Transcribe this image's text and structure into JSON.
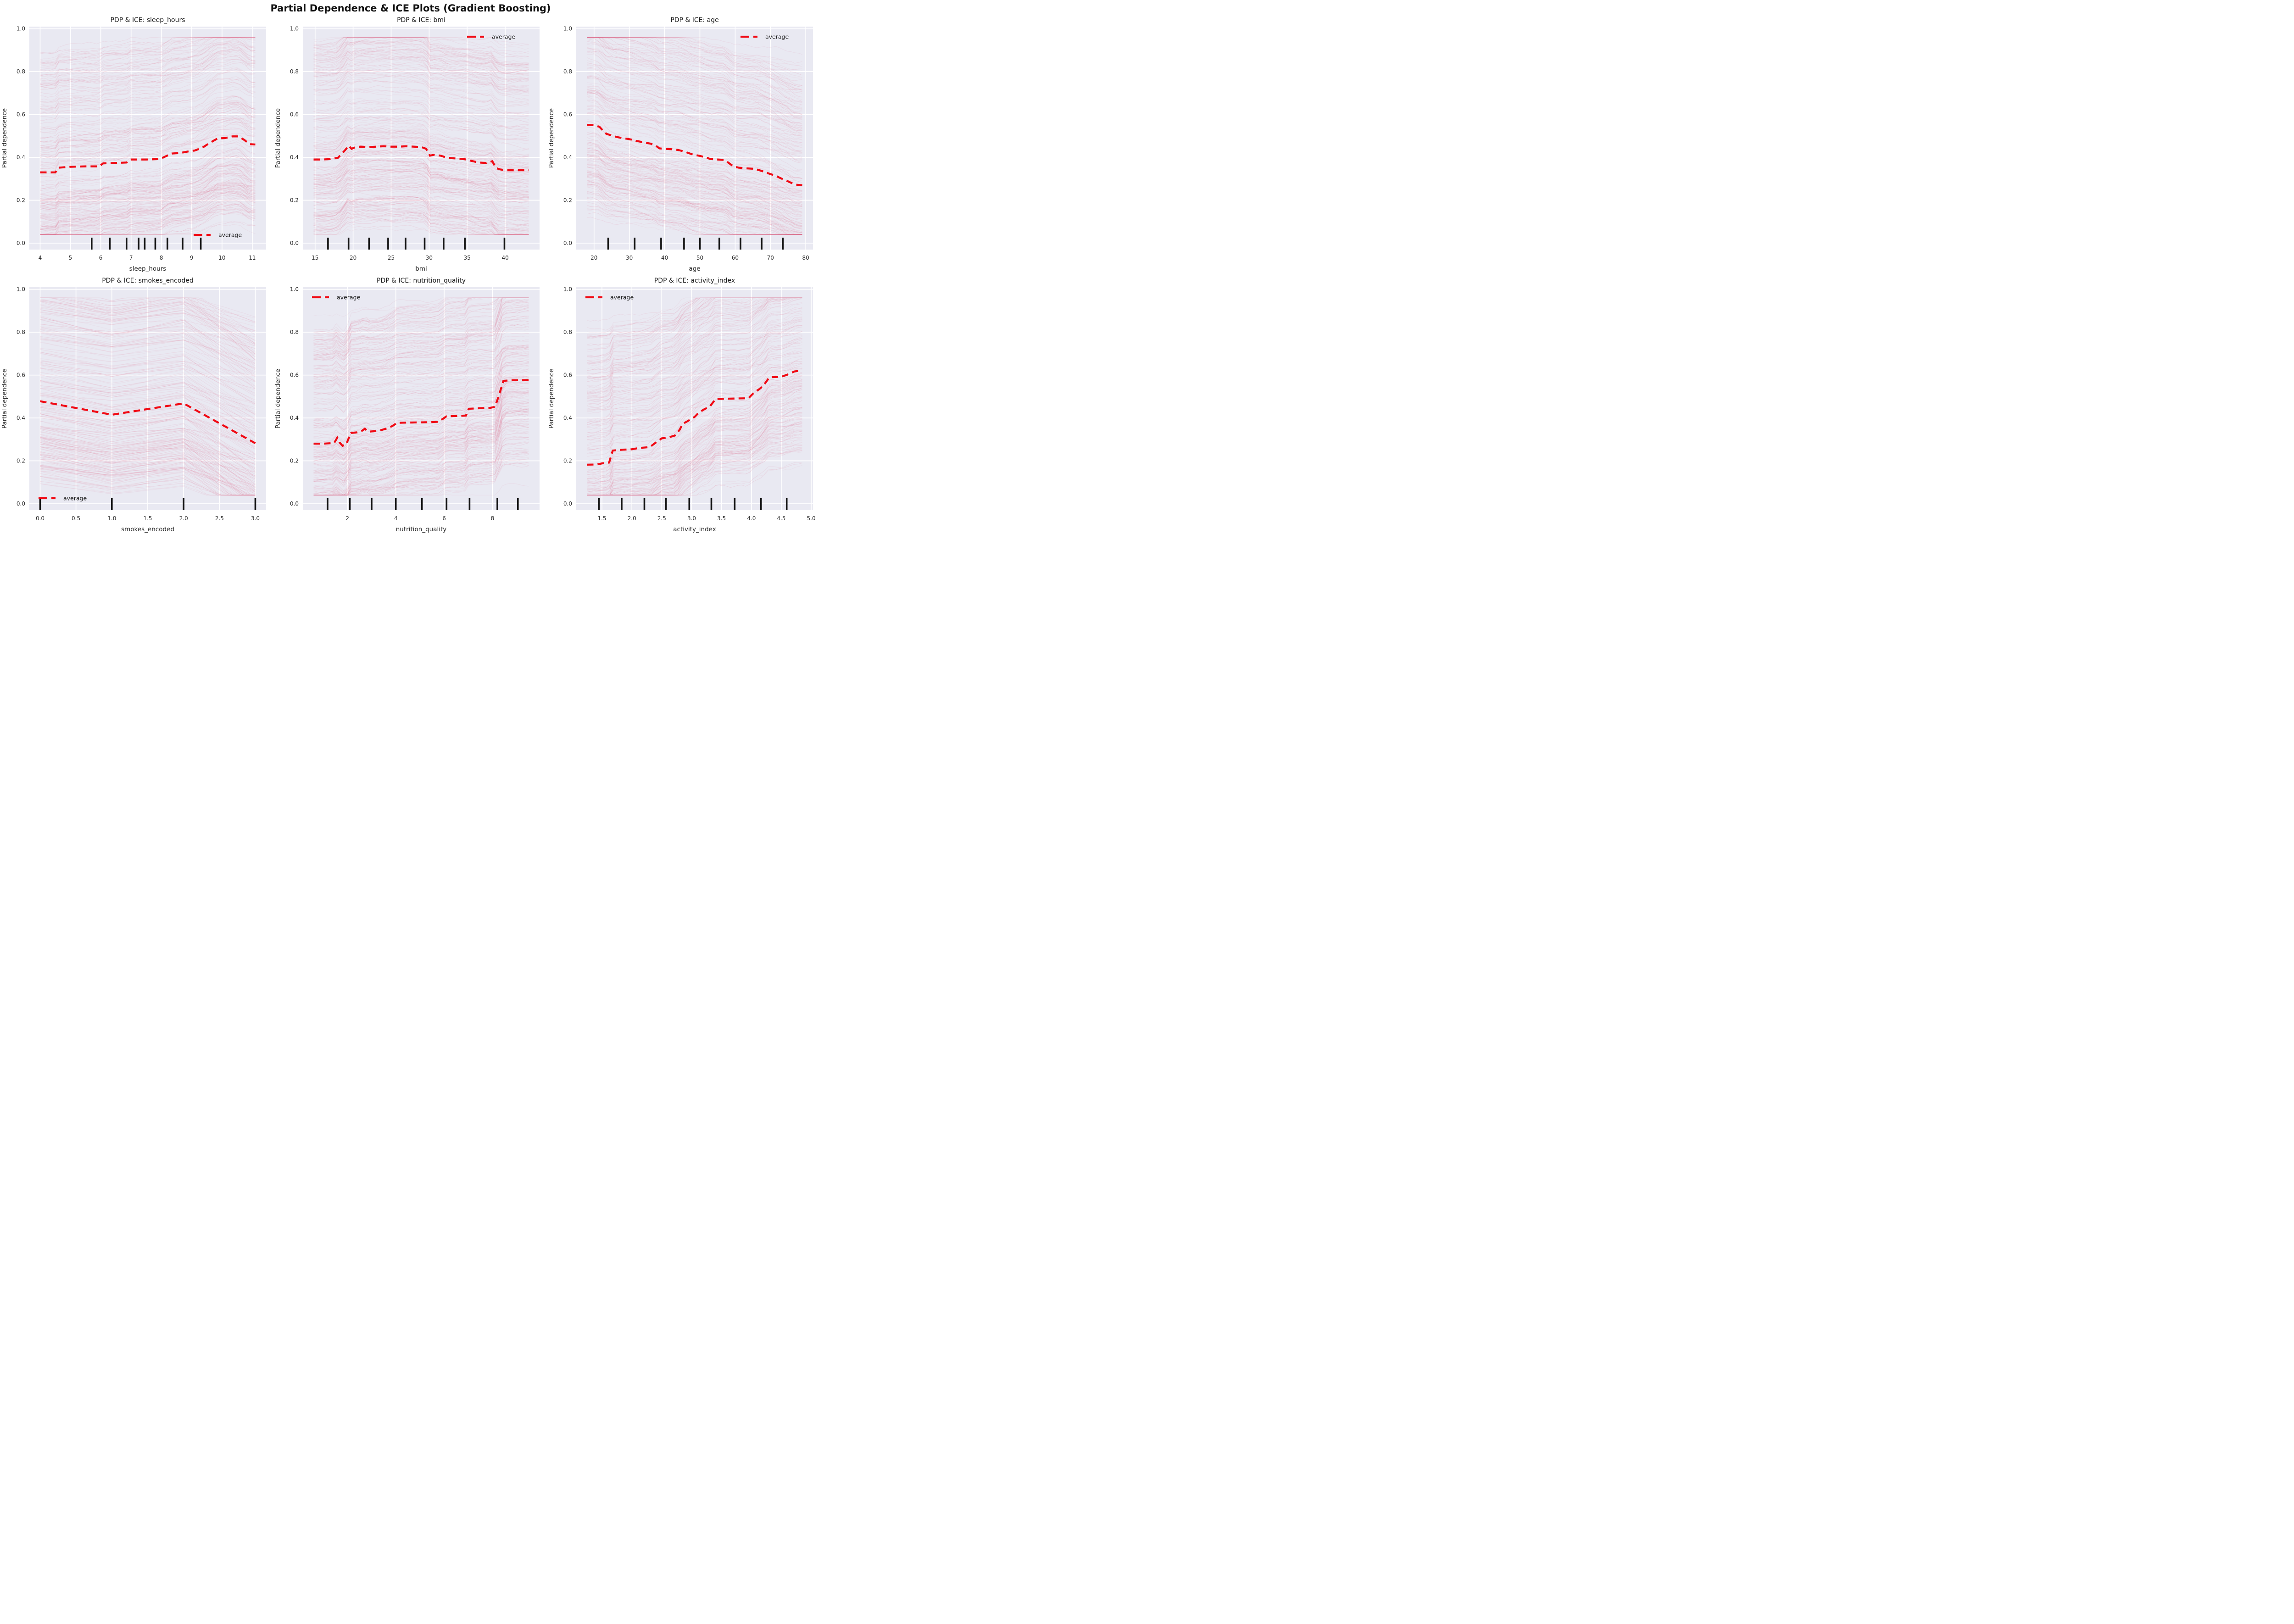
{
  "page": {
    "suptitle": "Partial Dependence & ICE Plots (Gradient Boosting)"
  },
  "style": {
    "background": "#ffffff",
    "axes_bg": "#e9e9f2",
    "grid": "#ffffff",
    "ice": "#e06080",
    "average": "#f00a14",
    "rug": "#141414",
    "text": "#2b2b2b",
    "title": "#1a1a1a"
  },
  "chart_data": [
    {
      "type": "line",
      "feature": "sleep_hours",
      "title": "PDP & ICE: sleep_hours",
      "xlabel": "sleep_hours",
      "ylabel": "Partial dependence",
      "legend": {
        "label": "average",
        "position": "lower right"
      },
      "x_axis_range": [
        3.645,
        11.455
      ],
      "y_axis_range": [
        -0.03,
        1.01
      ],
      "xtick_values": [
        4,
        5,
        6,
        7,
        8,
        9,
        10,
        11
      ],
      "xtick_labels": [
        "4",
        "5",
        "6",
        "7",
        "8",
        "9",
        "10",
        "11"
      ],
      "ytick_values": [
        0,
        0.2,
        0.4,
        0.6,
        0.8,
        1.0
      ],
      "ytick_labels": [
        "0.0",
        "0.2",
        "0.4",
        "0.6",
        "0.8",
        "1.0"
      ],
      "rug_deciles": [
        5.7,
        6.3,
        6.85,
        7.25,
        7.45,
        7.8,
        8.2,
        8.7,
        9.3
      ],
      "series": [
        {
          "name": "average",
          "x": [
            4.0,
            4.5,
            4.62,
            5.0,
            5.5,
            5.95,
            6.08,
            6.5,
            6.85,
            7.0,
            7.5,
            7.95,
            8.1,
            8.35,
            8.6,
            8.9,
            9.1,
            9.35,
            9.6,
            9.85,
            10.1,
            10.35,
            10.55,
            10.75,
            10.9,
            11.1
          ],
          "y": [
            0.33,
            0.33,
            0.352,
            0.356,
            0.358,
            0.358,
            0.372,
            0.374,
            0.376,
            0.39,
            0.39,
            0.392,
            0.402,
            0.418,
            0.42,
            0.428,
            0.432,
            0.445,
            0.468,
            0.488,
            0.49,
            0.498,
            0.498,
            0.48,
            0.462,
            0.46
          ]
        }
      ],
      "ice": {
        "count": 210,
        "seed": 1,
        "noise": 0.012,
        "y_clip": [
          0.04,
          0.96
        ]
      }
    },
    {
      "type": "line",
      "feature": "bmi",
      "title": "PDP & ICE: bmi",
      "xlabel": "bmi",
      "ylabel": "Partial dependence",
      "legend": {
        "label": "average",
        "position": "upper right"
      },
      "x_axis_range": [
        13.385,
        44.515
      ],
      "y_axis_range": [
        -0.03,
        1.01
      ],
      "xtick_values": [
        15,
        20,
        25,
        30,
        35,
        40
      ],
      "xtick_labels": [
        "15",
        "20",
        "25",
        "30",
        "35",
        "40"
      ],
      "ytick_values": [
        0,
        0.2,
        0.4,
        0.6,
        0.8,
        1.0
      ],
      "ytick_labels": [
        "0.0",
        "0.2",
        "0.4",
        "0.6",
        "0.8",
        "1.0"
      ],
      "rug_deciles": [
        16.7,
        19.4,
        22.1,
        24.6,
        26.9,
        29.4,
        31.9,
        34.7,
        39.9
      ],
      "series": [
        {
          "name": "average",
          "x": [
            14.8,
            16.0,
            17.0,
            18.0,
            18.6,
            19.0,
            19.4,
            19.8,
            20.3,
            21.0,
            22.0,
            23.0,
            24.0,
            25.0,
            26.0,
            27.0,
            28.0,
            29.0,
            29.6,
            30.1,
            30.6,
            31.5,
            32.2,
            33.0,
            34.0,
            34.9,
            35.5,
            36.5,
            37.5,
            38.3,
            38.8,
            39.3,
            40.0,
            41.0,
            42.0,
            43.1
          ],
          "y": [
            0.39,
            0.39,
            0.392,
            0.398,
            0.42,
            0.436,
            0.455,
            0.44,
            0.448,
            0.45,
            0.448,
            0.45,
            0.452,
            0.45,
            0.45,
            0.452,
            0.45,
            0.448,
            0.44,
            0.408,
            0.412,
            0.408,
            0.4,
            0.396,
            0.394,
            0.39,
            0.384,
            0.376,
            0.374,
            0.382,
            0.35,
            0.344,
            0.34,
            0.34,
            0.34,
            0.34
          ]
        }
      ],
      "ice": {
        "count": 210,
        "seed": 2,
        "noise": 0.012,
        "y_clip": [
          0.04,
          0.96
        ]
      }
    },
    {
      "type": "line",
      "feature": "age",
      "title": "PDP & ICE: age",
      "xlabel": "age",
      "ylabel": "Partial dependence",
      "legend": {
        "label": "average",
        "position": "upper right"
      },
      "x_axis_range": [
        14.95,
        82.05
      ],
      "y_axis_range": [
        -0.03,
        1.01
      ],
      "xtick_values": [
        20,
        30,
        40,
        50,
        60,
        70,
        80
      ],
      "xtick_labels": [
        "20",
        "30",
        "40",
        "50",
        "60",
        "70",
        "80"
      ],
      "ytick_values": [
        0,
        0.2,
        0.4,
        0.6,
        0.8,
        1.0
      ],
      "ytick_labels": [
        "0.0",
        "0.2",
        "0.4",
        "0.6",
        "0.8",
        "1.0"
      ],
      "rug_deciles": [
        24,
        31.5,
        39,
        45.5,
        50,
        55.5,
        61.5,
        67.5,
        73.5
      ],
      "series": [
        {
          "name": "average",
          "x": [
            18,
            20,
            21.5,
            22.5,
            23.5,
            25,
            26.5,
            28,
            30,
            32,
            34,
            36,
            37.5,
            38.5,
            40,
            42,
            44,
            46,
            48,
            50,
            52,
            53,
            55,
            57,
            58.5,
            59.5,
            61,
            63,
            65,
            66.5,
            68,
            70,
            71.5,
            73,
            74.5,
            76,
            77,
            79
          ],
          "y": [
            0.552,
            0.55,
            0.543,
            0.525,
            0.51,
            0.502,
            0.495,
            0.49,
            0.485,
            0.477,
            0.47,
            0.464,
            0.455,
            0.442,
            0.44,
            0.438,
            0.434,
            0.425,
            0.413,
            0.407,
            0.398,
            0.392,
            0.39,
            0.388,
            0.37,
            0.358,
            0.352,
            0.349,
            0.347,
            0.342,
            0.334,
            0.322,
            0.314,
            0.302,
            0.292,
            0.28,
            0.273,
            0.27
          ]
        }
      ],
      "ice": {
        "count": 210,
        "seed": 3,
        "noise": 0.012,
        "y_clip": [
          0.04,
          0.96
        ]
      }
    },
    {
      "type": "line",
      "feature": "smokes_encoded",
      "title": "PDP & ICE: smokes_encoded",
      "xlabel": "smokes_encoded",
      "ylabel": "Partial dependence",
      "legend": {
        "label": "average",
        "position": "lower left"
      },
      "x_axis_range": [
        -0.15,
        3.15
      ],
      "y_axis_range": [
        -0.03,
        1.01
      ],
      "xtick_values": [
        0,
        0.5,
        1.0,
        1.5,
        2.0,
        2.5,
        3.0
      ],
      "xtick_labels": [
        "0.0",
        "0.5",
        "1.0",
        "1.5",
        "2.0",
        "2.5",
        "3.0"
      ],
      "ytick_values": [
        0,
        0.2,
        0.4,
        0.6,
        0.8,
        1.0
      ],
      "ytick_labels": [
        "0.0",
        "0.2",
        "0.4",
        "0.6",
        "0.8",
        "1.0"
      ],
      "rug_deciles": [
        0,
        1,
        2,
        3
      ],
      "series": [
        {
          "name": "average",
          "x": [
            0,
            1,
            2,
            3
          ],
          "y": [
            0.478,
            0.415,
            0.468,
            0.282
          ]
        }
      ],
      "ice": {
        "count": 210,
        "seed": 4,
        "noise": 0.002,
        "y_clip": [
          0.04,
          0.96
        ]
      }
    },
    {
      "type": "line",
      "feature": "nutrition_quality",
      "title": "PDP & ICE: nutrition_quality",
      "xlabel": "nutrition_quality",
      "ylabel": "Partial dependence",
      "legend": {
        "label": "average",
        "position": "upper left"
      },
      "x_axis_range": [
        0.155,
        9.945
      ],
      "y_axis_range": [
        -0.03,
        1.01
      ],
      "xtick_values": [
        2,
        4,
        6,
        8
      ],
      "xtick_labels": [
        "2",
        "4",
        "6",
        "8"
      ],
      "ytick_values": [
        0,
        0.2,
        0.4,
        0.6,
        0.8,
        1.0
      ],
      "ytick_labels": [
        "0.0",
        "0.2",
        "0.4",
        "0.6",
        "0.8",
        "1.0"
      ],
      "rug_deciles": [
        1.18,
        2.1,
        3.0,
        4.0,
        5.08,
        6.1,
        7.05,
        8.2,
        9.05
      ],
      "series": [
        {
          "name": "average",
          "x": [
            0.6,
            1.0,
            1.45,
            1.58,
            1.68,
            1.8,
            1.95,
            2.05,
            2.15,
            2.4,
            2.6,
            2.72,
            2.85,
            3.1,
            3.35,
            3.6,
            3.85,
            4.05,
            4.3,
            4.8,
            5.3,
            5.75,
            5.95,
            6.1,
            6.5,
            6.9,
            7.02,
            7.4,
            7.9,
            8.1,
            8.25,
            8.45,
            8.8,
            9.2,
            9.5
          ],
          "y": [
            0.28,
            0.28,
            0.283,
            0.308,
            0.285,
            0.27,
            0.277,
            0.305,
            0.33,
            0.333,
            0.34,
            0.35,
            0.336,
            0.338,
            0.342,
            0.35,
            0.362,
            0.377,
            0.378,
            0.379,
            0.38,
            0.382,
            0.396,
            0.408,
            0.409,
            0.411,
            0.443,
            0.445,
            0.447,
            0.452,
            0.5,
            0.573,
            0.576,
            0.576,
            0.577
          ]
        }
      ],
      "ice": {
        "count": 210,
        "seed": 5,
        "noise": 0.012,
        "y_clip": [
          0.04,
          0.96
        ]
      }
    },
    {
      "type": "line",
      "feature": "activity_index",
      "title": "PDP & ICE: activity_index",
      "xlabel": "activity_index",
      "ylabel": "Partial dependence",
      "legend": {
        "label": "average",
        "position": "upper left"
      },
      "x_axis_range": [
        1.07,
        5.03
      ],
      "y_axis_range": [
        -0.03,
        1.01
      ],
      "xtick_values": [
        1.5,
        2.0,
        2.5,
        3.0,
        3.5,
        4.0,
        4.5,
        5.0
      ],
      "xtick_labels": [
        "1.5",
        "2.0",
        "2.5",
        "3.0",
        "3.5",
        "4.0",
        "4.5",
        "5.0"
      ],
      "ytick_values": [
        0,
        0.2,
        0.4,
        0.6,
        0.8,
        1.0
      ],
      "ytick_labels": [
        "0.0",
        "0.2",
        "0.4",
        "0.6",
        "0.8",
        "1.0"
      ],
      "rug_deciles": [
        1.45,
        1.83,
        2.21,
        2.57,
        2.96,
        3.33,
        3.72,
        4.16,
        4.59
      ],
      "series": [
        {
          "name": "average",
          "x": [
            1.25,
            1.42,
            1.5,
            1.62,
            1.68,
            1.85,
            2.0,
            2.12,
            2.3,
            2.4,
            2.5,
            2.62,
            2.72,
            2.8,
            2.85,
            2.95,
            3.05,
            3.12,
            3.22,
            3.3,
            3.4,
            3.6,
            3.95,
            4.05,
            4.12,
            4.2,
            4.3,
            4.5,
            4.6,
            4.72,
            4.85
          ],
          "y": [
            0.182,
            0.183,
            0.188,
            0.192,
            0.248,
            0.252,
            0.254,
            0.26,
            0.264,
            0.285,
            0.305,
            0.31,
            0.318,
            0.345,
            0.372,
            0.388,
            0.405,
            0.425,
            0.442,
            0.452,
            0.488,
            0.49,
            0.492,
            0.52,
            0.532,
            0.55,
            0.59,
            0.592,
            0.602,
            0.617,
            0.622
          ]
        }
      ],
      "ice": {
        "count": 210,
        "seed": 6,
        "noise": 0.012,
        "y_clip": [
          0.04,
          0.96
        ]
      }
    }
  ]
}
